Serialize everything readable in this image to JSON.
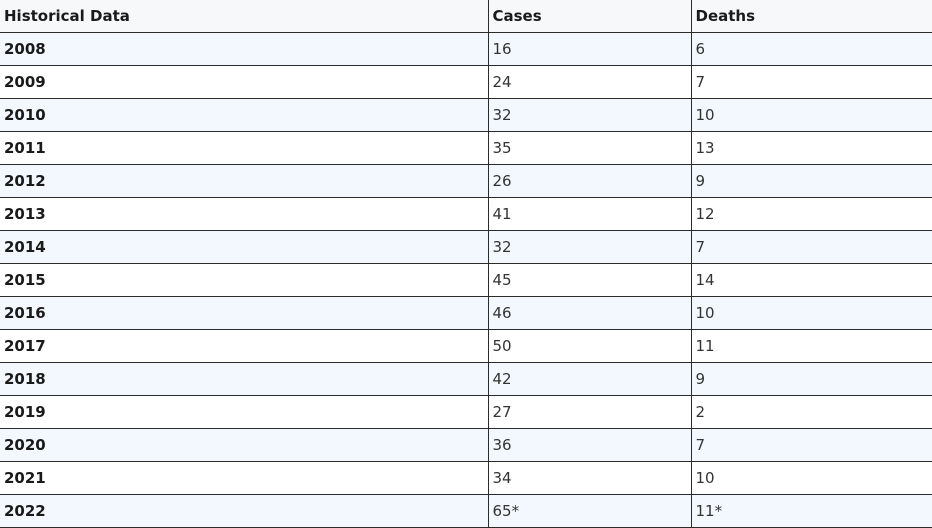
{
  "table": {
    "headers": [
      "Historical Data",
      "Cases",
      "Deaths"
    ],
    "rows": [
      {
        "year": "2008",
        "cases": "16",
        "deaths": "6"
      },
      {
        "year": "2009",
        "cases": "24",
        "deaths": "7"
      },
      {
        "year": "2010",
        "cases": "32",
        "deaths": "10"
      },
      {
        "year": "2011",
        "cases": "35",
        "deaths": "13"
      },
      {
        "year": "2012",
        "cases": "26",
        "deaths": "9"
      },
      {
        "year": "2013",
        "cases": "41",
        "deaths": "12"
      },
      {
        "year": "2014",
        "cases": "32",
        "deaths": "7"
      },
      {
        "year": "2015",
        "cases": "45",
        "deaths": "14"
      },
      {
        "year": "2016",
        "cases": "46",
        "deaths": "10"
      },
      {
        "year": "2017",
        "cases": "50",
        "deaths": "11"
      },
      {
        "year": "2018",
        "cases": "42",
        "deaths": "9"
      },
      {
        "year": "2019",
        "cases": "27",
        "deaths": "2"
      },
      {
        "year": "2020",
        "cases": "36",
        "deaths": "7"
      },
      {
        "year": "2021",
        "cases": "34",
        "deaths": "10"
      },
      {
        "year": "2022",
        "cases": "65*",
        "deaths": "11*"
      }
    ]
  },
  "colors": {
    "stripe": "#f2f8fd",
    "header_bg": "#f7f8f9",
    "border": "#2b2b2b"
  }
}
